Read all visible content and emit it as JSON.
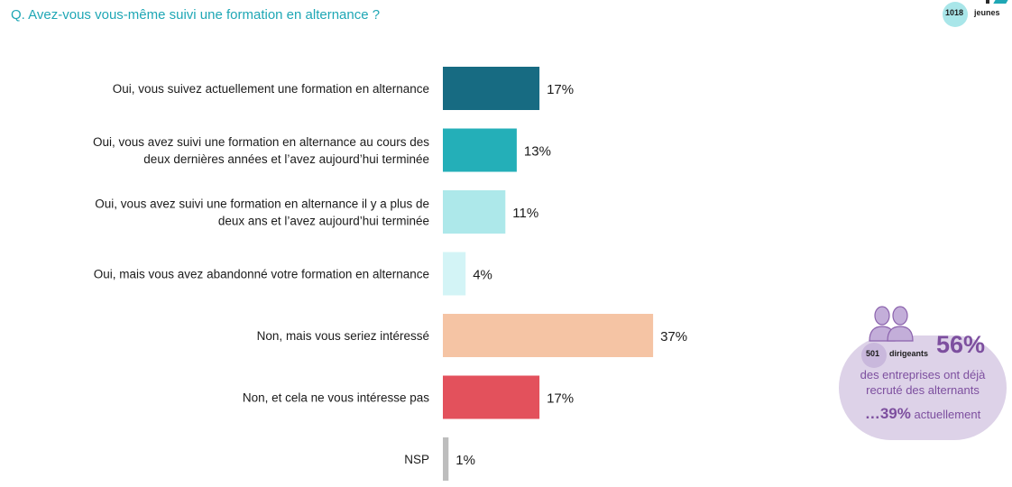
{
  "question": "Q. Avez-vous vous-même suivi une formation en alternance ?",
  "sample": {
    "count": "1018",
    "label": "jeunes"
  },
  "callout": {
    "count": "501",
    "label": "dirigeants",
    "big_value": "56%",
    "text": "des entreprises ont déjà recruté des alternants",
    "bottom_prefix": "…39%",
    "bottom_suffix": "actuellement"
  },
  "chart_data": {
    "type": "bar",
    "orientation": "horizontal",
    "categories": [
      "Oui, vous suivez actuellement une formation en alternance",
      "Oui, vous avez suivi une formation en alternance au cours des deux dernières années et l’avez aujourd’hui terminée",
      "Oui, vous avez suivi une formation en alternance il y a plus de deux ans et l’avez aujourd’hui terminée",
      "Oui, mais vous avez abandonné votre formation en alternance",
      "Non, mais vous seriez intéressé",
      "Non, et cela ne vous intéresse pas",
      "NSP"
    ],
    "label_lines": [
      [
        "Oui, vous suivez actuellement une formation en alternance"
      ],
      [
        "Oui, vous avez suivi une formation en alternance au cours des",
        "deux dernières années et l’avez aujourd’hui terminée"
      ],
      [
        "Oui, vous avez suivi une formation en alternance il y a plus de",
        "deux ans et l’avez aujourd’hui terminée"
      ],
      [
        "Oui, mais vous avez abandonné votre formation en alternance"
      ],
      [
        "Non, mais vous seriez intéressé"
      ],
      [
        "Non, et cela ne vous intéresse pas"
      ],
      [
        "NSP"
      ]
    ],
    "values": [
      17,
      13,
      11,
      4,
      37,
      17,
      1
    ],
    "value_labels": [
      "17%",
      "13%",
      "11%",
      "4%",
      "37%",
      "17%",
      "1%"
    ],
    "colors": [
      "#176b82",
      "#24afb8",
      "#ade8ea",
      "#d3f4f6",
      "#f5c4a4",
      "#e3515c",
      "#bdbdbd"
    ],
    "unit": "%",
    "xlim": [
      0,
      37
    ]
  }
}
